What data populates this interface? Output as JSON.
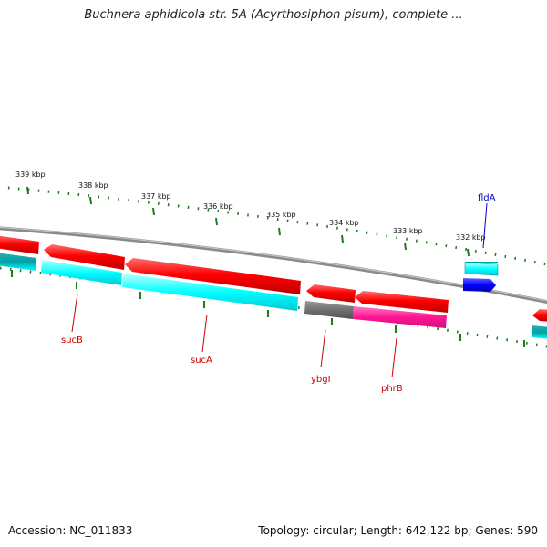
{
  "title": "Buchnera aphidicola str. 5A (Acyrthosiphon pisum), complete ...",
  "footer": {
    "accession": "Accession: NC_011833",
    "summary": "Topology: circular; Length: 642,122 bp; Genes: 590"
  },
  "colors": {
    "backbone": "#8a8a8a",
    "tick": "#1f7a1f",
    "cds_red": "#ff0000",
    "cds_cyan": "#00ffff",
    "cds_gray": "#707070",
    "cds_magenta": "#ff1493",
    "cds_blue": "#0000ff",
    "label_red": "#cc0000",
    "label_blue": "#0000cc"
  },
  "scale": {
    "unit": "kbp",
    "tick_labels": [
      "339 kbp",
      "338 kbp",
      "337 kbp",
      "336 kbp",
      "335 kbp",
      "334 kbp",
      "333 kbp",
      "332 kbp"
    ]
  },
  "gene_labels": [
    {
      "name": "sucB",
      "color": "red"
    },
    {
      "name": "sucA",
      "color": "red"
    },
    {
      "name": "ybgI",
      "color": "red"
    },
    {
      "name": "phrB",
      "color": "red"
    },
    {
      "name": "fldA",
      "color": "blue"
    }
  ]
}
